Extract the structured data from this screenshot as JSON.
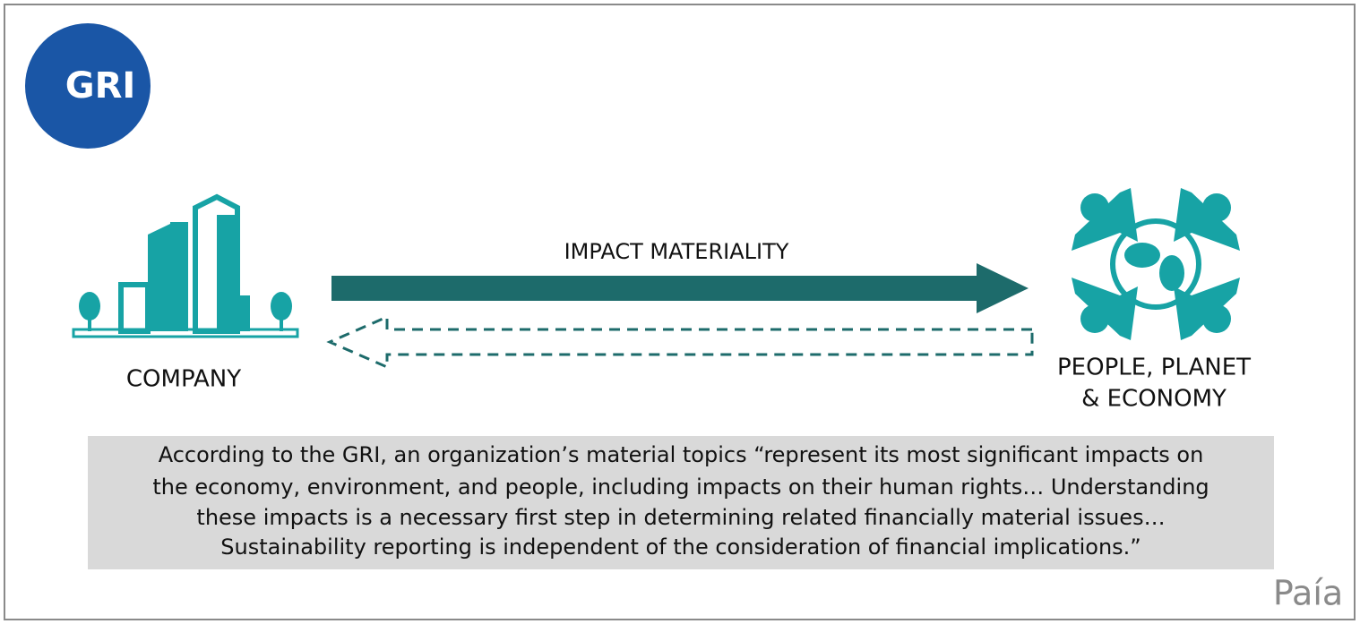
{
  "logo": "GRI",
  "source": {
    "label": "COMPANY"
  },
  "target": {
    "label_lines": [
      "PEOPLE, PLANET",
      "& ECONOMY"
    ]
  },
  "arrow_label": "IMPACT MATERIALITY",
  "quote": {
    "lines": [
      "According to the GRI, an organization’s material topics “represent its most significant impacts on",
      "the economy, environment, and people, including impacts on their human rights… Understanding",
      "these impacts is a necessary first step in determining related financially material issues…",
      "Sustainability reporting is independent of the consideration of financial implications.”"
    ]
  },
  "brand": "Paía"
}
